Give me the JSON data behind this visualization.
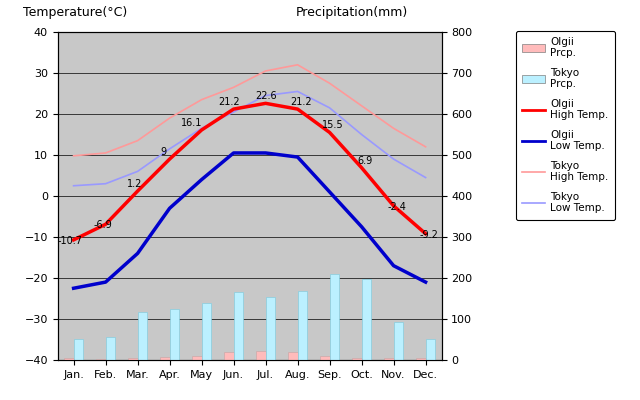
{
  "months": [
    "Jan.",
    "Feb.",
    "Mar.",
    "Apr.",
    "May",
    "Jun.",
    "Jul.",
    "Aug.",
    "Sep.",
    "Oct.",
    "Nov.",
    "Dec."
  ],
  "month_indices": [
    0,
    1,
    2,
    3,
    4,
    5,
    6,
    7,
    8,
    9,
    10,
    11
  ],
  "olgii_high": [
    -10.7,
    -6.9,
    1.2,
    9.0,
    16.1,
    21.2,
    22.6,
    21.2,
    15.5,
    6.9,
    -2.4,
    -9.2
  ],
  "olgii_low": [
    -22.5,
    -21.0,
    -14.0,
    -3.0,
    4.0,
    10.5,
    10.5,
    9.5,
    1.0,
    -7.5,
    -17.0,
    -21.0
  ],
  "tokyo_high": [
    9.8,
    10.5,
    13.5,
    19.0,
    23.5,
    26.5,
    30.5,
    32.0,
    27.5,
    22.0,
    16.5,
    12.0
  ],
  "tokyo_low": [
    2.5,
    3.0,
    6.0,
    11.5,
    16.5,
    20.5,
    24.5,
    25.5,
    21.5,
    15.0,
    9.0,
    4.5
  ],
  "olgii_prcp": [
    5,
    3,
    5,
    7,
    10,
    20,
    22,
    20,
    10,
    5,
    5,
    6
  ],
  "tokyo_prcp": [
    52,
    56,
    117,
    124,
    138,
    167,
    154,
    168,
    210,
    197,
    93,
    51
  ],
  "temp_ylim": [
    -40,
    40
  ],
  "prcp_ylim": [
    0,
    800
  ],
  "olgii_high_color": "#ff0000",
  "olgii_low_color": "#0000cc",
  "tokyo_high_color": "#ff9999",
  "tokyo_low_color": "#9999ff",
  "olgii_prcp_color": "#ffbbbb",
  "tokyo_prcp_color": "#bbf0ff",
  "title_left": "Temperature(°C)",
  "title_right": "Precipitation(mm)",
  "olgii_high_labels": [
    -10.7,
    -6.9,
    1.2,
    9,
    16.1,
    21.2,
    22.6,
    21.2,
    15.5,
    6.9,
    -2.4,
    -9.2
  ],
  "show_label": [
    true,
    true,
    true,
    true,
    true,
    true,
    true,
    true,
    true,
    true,
    true,
    true
  ]
}
